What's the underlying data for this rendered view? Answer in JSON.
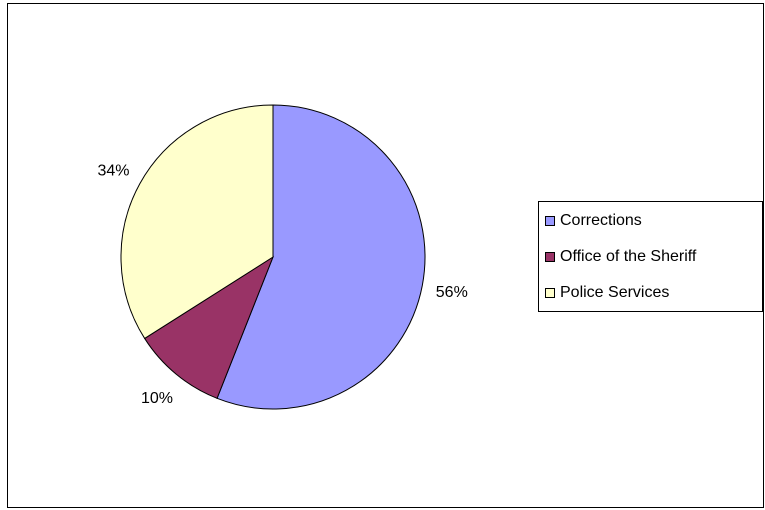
{
  "chart_data": {
    "type": "pie",
    "title": "",
    "categories": [
      "Corrections",
      "Office of the Sheriff",
      "Police Services"
    ],
    "values": [
      56,
      10,
      34
    ],
    "value_labels": [
      "56%",
      "10%",
      "34%"
    ],
    "colors": [
      "#9999ff",
      "#993366",
      "#ffffcc"
    ],
    "start_angle_deg": 0,
    "direction": "clockwise",
    "legend_placement": "right",
    "grid": false
  }
}
